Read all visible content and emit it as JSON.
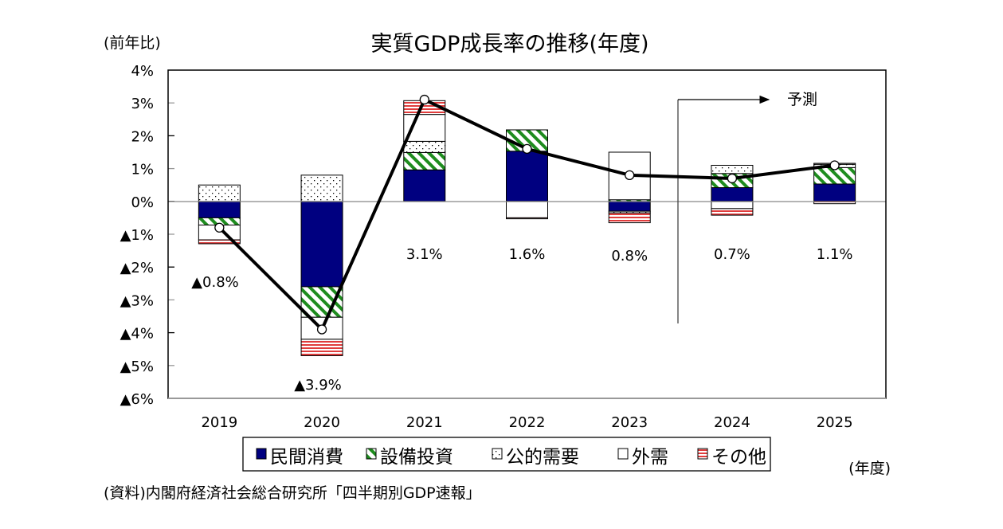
{
  "chart_data": {
    "type": "bar",
    "stacked": true,
    "title": "実質GDP成長率の推移(年度)",
    "ylabel": "(前年比)",
    "xlabel": "(年度)",
    "source": "(資料)内閣府経済社会総合研究所「四半期別GDP速報」",
    "forecast_label": "予測",
    "forecast_from": "2024",
    "categories": [
      "2019",
      "2020",
      "2021",
      "2022",
      "2023",
      "2024",
      "2025"
    ],
    "ylim": [
      -6,
      4
    ],
    "yticks": [
      4,
      3,
      2,
      1,
      0,
      -1,
      -2,
      -3,
      -4,
      -5,
      -6
    ],
    "ytick_labels": [
      "4%",
      "3%",
      "2%",
      "1%",
      "0%",
      "▲1%",
      "▲2%",
      "▲3%",
      "▲4%",
      "▲5%",
      "▲6%"
    ],
    "series": [
      {
        "name": "民間消費",
        "pattern": "solid",
        "color": "#000080",
        "values": [
          -0.5,
          -2.6,
          0.96,
          1.53,
          -0.3,
          0.42,
          0.53
        ]
      },
      {
        "name": "設備投資",
        "pattern": "diagonal-stripe",
        "color": "#1e8c1e",
        "values": [
          -0.22,
          -0.93,
          0.53,
          0.65,
          0.05,
          0.43,
          0.5
        ]
      },
      {
        "name": "公的需要",
        "pattern": "dots",
        "color": "#000000",
        "values": [
          0.5,
          0.8,
          0.34,
          0.0,
          -0.05,
          0.25,
          0.1
        ]
      },
      {
        "name": "外需",
        "pattern": "empty",
        "color": "#ffffff",
        "values": [
          -0.45,
          -0.67,
          0.82,
          -0.5,
          1.45,
          -0.22,
          0.03
        ]
      },
      {
        "name": "その他",
        "pattern": "horizontal-stripe",
        "color": "#e03c3c",
        "values": [
          -0.12,
          -0.5,
          0.42,
          -0.03,
          -0.3,
          -0.2,
          -0.07
        ]
      }
    ],
    "line": {
      "name": "実質GDP成長率",
      "values": [
        -0.8,
        -3.9,
        3.1,
        1.6,
        0.8,
        0.7,
        1.1
      ]
    },
    "data_labels": [
      "▲0.8%",
      "▲3.9%",
      "3.1%",
      "1.6%",
      "0.8%",
      "0.7%",
      "1.1%"
    ],
    "legend": {
      "position": "bottom",
      "entries": [
        "民間消費",
        "設備投資",
        "公的需要",
        "外需",
        "その他"
      ]
    },
    "grid": false
  }
}
